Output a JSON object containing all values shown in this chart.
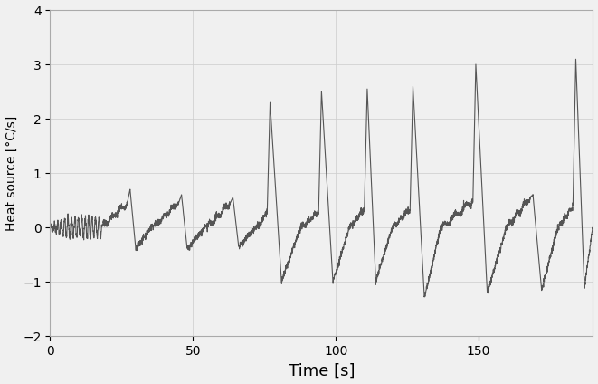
{
  "xlabel": "Time [s]",
  "ylabel": "Heat source [°C/s]",
  "xlim": [
    0,
    190
  ],
  "ylim": [
    -2,
    4
  ],
  "xticks": [
    0,
    50,
    100,
    150
  ],
  "yticks": [
    -2,
    -1,
    0,
    1,
    2,
    3,
    4
  ],
  "line_color": "#555555",
  "line_width": 0.8,
  "background_color": "#f0f0f0",
  "grid_color": "#cccccc",
  "xlabel_fontsize": 13,
  "ylabel_fontsize": 10,
  "tick_fontsize": 10,
  "cycles": [
    {
      "t_start": 0,
      "t_slow_end": 8,
      "t_peak": 8.5,
      "t_trough": 10,
      "t_end": 18,
      "slow_val": 0.0,
      "peak_val": 0.0,
      "trough_val": 0.0,
      "recovery_val": 0.0,
      "is_noise_phase": true
    },
    {
      "t_start": 18,
      "t_slow_end": 27,
      "t_peak": 28,
      "t_trough": 30,
      "t_end": 36,
      "slow_val": 0.45,
      "peak_val": 0.7,
      "trough_val": -0.4,
      "recovery_val": 0.0,
      "is_noise_phase": false
    },
    {
      "t_start": 36,
      "t_slow_end": 45,
      "t_peak": 46,
      "t_trough": 48,
      "t_end": 55,
      "slow_val": 0.45,
      "peak_val": 0.6,
      "trough_val": -0.4,
      "recovery_val": 0.0,
      "is_noise_phase": false
    },
    {
      "t_start": 55,
      "t_slow_end": 63,
      "t_peak": 64,
      "t_trough": 66,
      "t_end": 73,
      "slow_val": 0.45,
      "peak_val": 0.55,
      "trough_val": -0.35,
      "recovery_val": 0.0,
      "is_noise_phase": false
    },
    {
      "t_start": 73,
      "t_slow_end": 76,
      "t_peak": 77,
      "t_trough": 81,
      "t_end": 88,
      "slow_val": 0.3,
      "peak_val": 2.3,
      "trough_val": -1.0,
      "recovery_val": 0.0,
      "is_noise_phase": false
    },
    {
      "t_start": 88,
      "t_slow_end": 94,
      "t_peak": 95,
      "t_trough": 99,
      "t_end": 105,
      "slow_val": 0.3,
      "peak_val": 2.5,
      "trough_val": -1.0,
      "recovery_val": 0.0,
      "is_noise_phase": false
    },
    {
      "t_start": 105,
      "t_slow_end": 110,
      "t_peak": 111,
      "t_trough": 114,
      "t_end": 120,
      "slow_val": 0.35,
      "peak_val": 2.55,
      "trough_val": -1.0,
      "recovery_val": 0.0,
      "is_noise_phase": false
    },
    {
      "t_start": 120,
      "t_slow_end": 126,
      "t_peak": 127,
      "t_trough": 131,
      "t_end": 137,
      "slow_val": 0.35,
      "peak_val": 2.6,
      "trough_val": -1.3,
      "recovery_val": 0.0,
      "is_noise_phase": false
    },
    {
      "t_start": 137,
      "t_slow_end": 148,
      "t_peak": 149,
      "t_trough": 153,
      "t_end": 160,
      "slow_val": 0.5,
      "peak_val": 3.0,
      "trough_val": -1.2,
      "recovery_val": 0.0,
      "is_noise_phase": false
    },
    {
      "t_start": 160,
      "t_slow_end": 168,
      "t_peak": 169,
      "t_trough": 172,
      "t_end": 178,
      "slow_val": 0.55,
      "peak_val": 0.6,
      "trough_val": -1.15,
      "recovery_val": 0.0,
      "is_noise_phase": false
    },
    {
      "t_start": 178,
      "t_slow_end": 183,
      "t_peak": 184,
      "t_trough": 187,
      "t_end": 190,
      "slow_val": 0.4,
      "peak_val": 3.1,
      "trough_val": -1.1,
      "recovery_val": -0.5,
      "is_noise_phase": false
    }
  ]
}
